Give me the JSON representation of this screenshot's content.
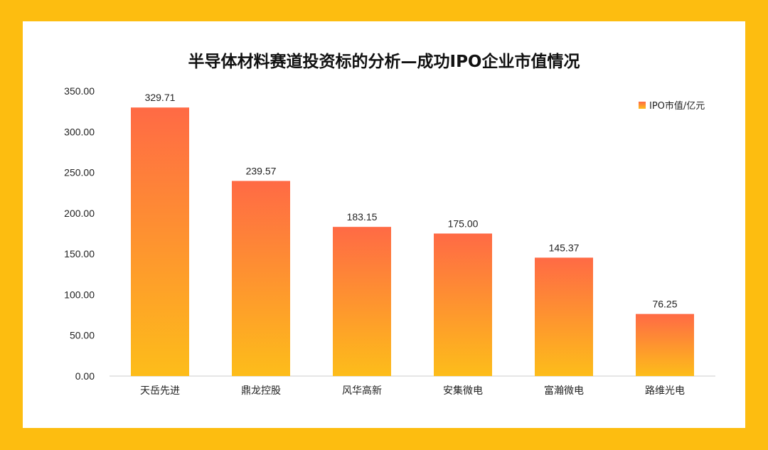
{
  "chart_data": {
    "type": "bar",
    "title": "半导体材料赛道投资标的分析—成功IPO企业市值情况",
    "categories": [
      "天岳先进",
      "鼎龙控股",
      "风华高新",
      "安集微电",
      "富瀚微电",
      "路维光电"
    ],
    "series": [
      {
        "name": "IPO市值/亿元",
        "values": [
          329.71,
          239.57,
          183.15,
          175.0,
          145.37,
          76.25
        ],
        "value_labels": [
          "329.71",
          "239.57",
          "183.15",
          "175.00",
          "145.37",
          "76.25"
        ]
      }
    ],
    "ylim": [
      0,
      350
    ],
    "y_ticks": [
      "0.00",
      "50.00",
      "100.00",
      "150.00",
      "200.00",
      "250.00",
      "300.00",
      "350.00"
    ],
    "grid": false,
    "legend_position": "top-right",
    "colors": {
      "bar_top": "#FF6A45",
      "bar_bottom": "#FDBD1A",
      "frame": "#FDBD10",
      "axis": "#CCCCCC"
    }
  }
}
